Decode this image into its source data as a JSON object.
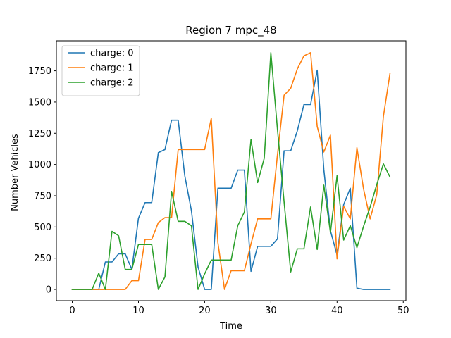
{
  "chart_data": {
    "type": "line",
    "title": "Region 7 mpc_48",
    "xlabel": "Time",
    "ylabel": "Number Vehicles",
    "xlim": [
      -2.4,
      50.4
    ],
    "ylim": [
      -90,
      1990
    ],
    "xticks": [
      0,
      10,
      20,
      30,
      40,
      50
    ],
    "yticks": [
      0,
      250,
      500,
      750,
      1000,
      1250,
      1500,
      1750
    ],
    "grid": false,
    "legend": "upper left",
    "x": [
      0,
      1,
      2,
      3,
      4,
      5,
      6,
      7,
      8,
      9,
      10,
      11,
      12,
      13,
      14,
      15,
      16,
      17,
      18,
      19,
      20,
      21,
      22,
      23,
      24,
      25,
      26,
      27,
      28,
      29,
      30,
      31,
      32,
      33,
      34,
      35,
      36,
      37,
      38,
      39,
      40,
      41,
      42,
      43,
      44,
      45,
      46,
      47,
      48
    ],
    "series": [
      {
        "name": "charge: 0",
        "color": "#1f77b4",
        "values": [
          0,
          0,
          0,
          0,
          0,
          220,
          220,
          285,
          285,
          160,
          570,
          695,
          695,
          1095,
          1120,
          1355,
          1355,
          910,
          630,
          180,
          0,
          0,
          810,
          810,
          810,
          955,
          955,
          145,
          345,
          345,
          345,
          405,
          1110,
          1110,
          1270,
          1480,
          1480,
          1755,
          960,
          470,
          275,
          680,
          810,
          10,
          0,
          0,
          0,
          0,
          0
        ]
      },
      {
        "name": "charge: 1",
        "color": "#ff7f0e",
        "values": [
          0,
          0,
          0,
          0,
          0,
          0,
          0,
          0,
          0,
          70,
          70,
          400,
          400,
          535,
          575,
          575,
          1120,
          1120,
          1120,
          1120,
          1120,
          1370,
          375,
          0,
          150,
          150,
          150,
          365,
          565,
          565,
          565,
          1080,
          1555,
          1610,
          1765,
          1870,
          1895,
          1305,
          1100,
          1235,
          245,
          665,
          565,
          1135,
          805,
          565,
          760,
          1385,
          1730
        ]
      },
      {
        "name": "charge: 2",
        "color": "#2ca02c",
        "values": [
          0,
          0,
          0,
          0,
          130,
          0,
          465,
          430,
          160,
          160,
          360,
          360,
          360,
          0,
          100,
          785,
          545,
          545,
          510,
          0,
          125,
          235,
          235,
          235,
          235,
          510,
          620,
          1200,
          855,
          1050,
          1895,
          1280,
          700,
          140,
          325,
          325,
          660,
          320,
          835,
          455,
          910,
          395,
          510,
          335,
          505,
          660,
          840,
          1005,
          900
        ]
      }
    ]
  }
}
